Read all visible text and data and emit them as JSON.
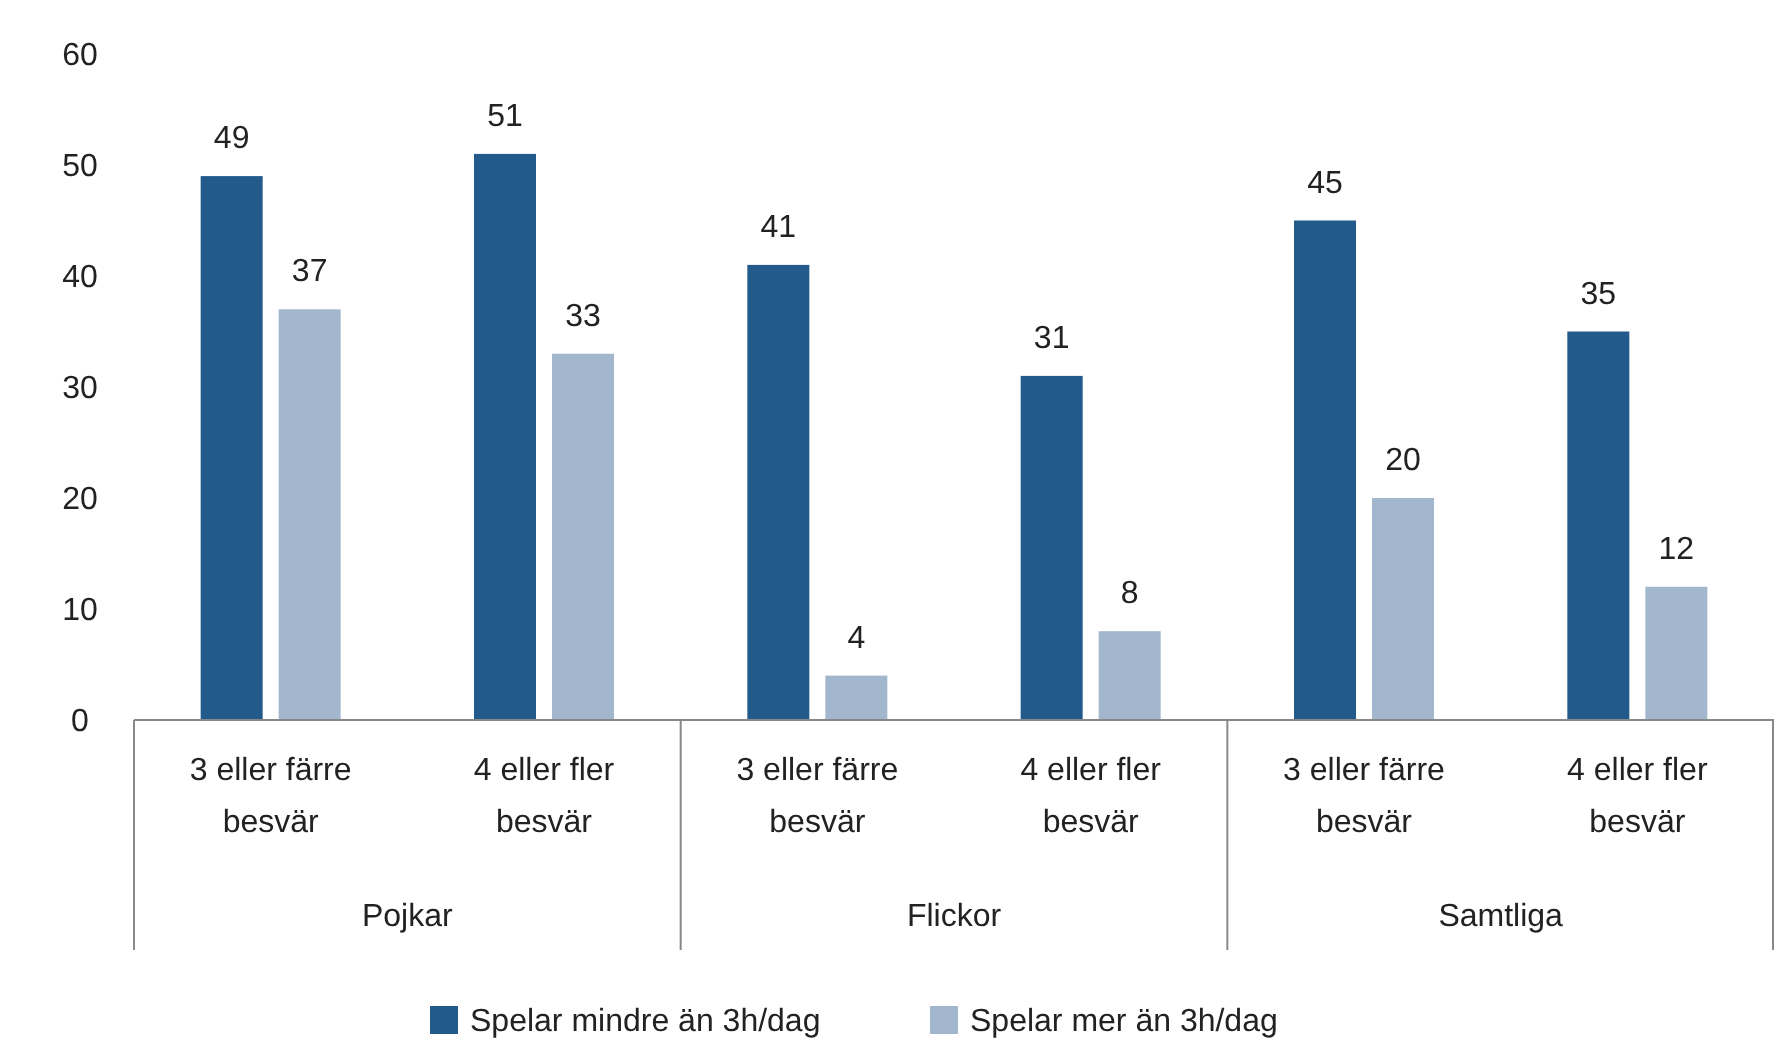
{
  "chart_data": {
    "type": "bar",
    "categories": [
      "3 eller färre besvär",
      "4 eller fler besvär",
      "3 eller färre besvär",
      "4 eller fler besvär",
      "3 eller färre besvär",
      "4 eller fler besvär"
    ],
    "series": [
      {
        "name": "Spelar mindre än 3h/dag",
        "color": "#215a8b",
        "values": [
          49,
          51,
          41,
          31,
          45,
          35
        ]
      },
      {
        "name": "Spelar mer än 3h/dag",
        "color": "#a2b6cd",
        "values": [
          37,
          33,
          4,
          8,
          20,
          12
        ]
      }
    ],
    "annotations": [
      "Pojkar",
      "Flickor",
      "Samtliga"
    ],
    "ylim": [
      0,
      60
    ],
    "yticks": [
      0,
      10,
      20,
      30,
      40,
      50,
      60
    ],
    "grid": false,
    "legend": "bottom",
    "data_labels": true
  }
}
